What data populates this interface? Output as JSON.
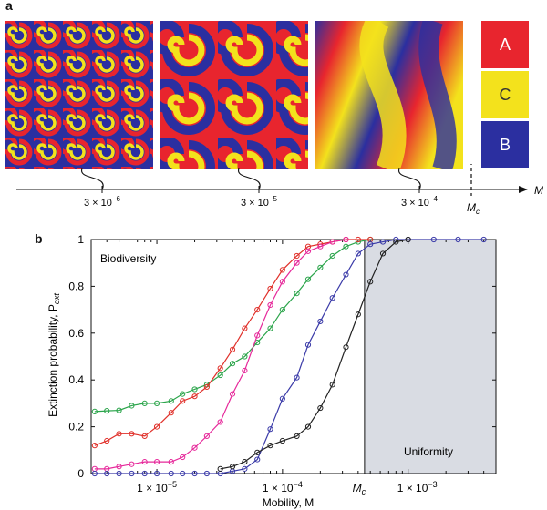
{
  "panel_a": {
    "letter": "a",
    "axis_label": "M",
    "critical_label": "M",
    "critical_sub": "c",
    "ticks": [
      {
        "base": "3 × 10",
        "exp": "−6"
      },
      {
        "base": "3 × 10",
        "exp": "−5"
      },
      {
        "base": "3 × 10",
        "exp": "−4"
      }
    ],
    "legend": [
      {
        "label": "A",
        "color": "#e8252e"
      },
      {
        "label": "C",
        "color": "#f3e21c"
      },
      {
        "label": "B",
        "color": "#2b2fa0"
      }
    ]
  },
  "panel_b": {
    "letter": "b",
    "region_left": "Biodiversity",
    "region_right": "Uniformity"
  },
  "chart_data": {
    "type": "line",
    "xscale": "log",
    "xlabel": "Mobility, M",
    "ylabel": "Extinction probability, P",
    "ylabel_sub": "ext",
    "xlim": [
      3e-06,
      0.005
    ],
    "ylim": [
      0,
      1
    ],
    "yticks": [
      "0",
      "0.2",
      "0.4",
      "0.6",
      "0.8",
      "1"
    ],
    "xticks": [
      {
        "base": "1 × 10",
        "exp": "−5"
      },
      {
        "base": "1 × 10",
        "exp": "−4"
      },
      {
        "base": "1 × 10",
        "exp": "−3"
      }
    ],
    "critical_tick": {
      "label": "M",
      "sub": "c",
      "value": 0.00045
    },
    "shaded_from": 0.00045,
    "series": [
      {
        "color": "#2aa44a",
        "x": [
          3.2e-06,
          4e-06,
          5e-06,
          6.3e-06,
          8e-06,
          1e-05,
          1.3e-05,
          1.6e-05,
          2e-05,
          2.5e-05,
          3.2e-05,
          4e-05,
          5e-05,
          6.3e-05,
          8e-05,
          0.0001,
          0.00013,
          0.00016,
          0.0002,
          0.00025,
          0.00032,
          0.0004,
          0.0005
        ],
        "y": [
          0.265,
          0.268,
          0.27,
          0.29,
          0.3,
          0.3,
          0.31,
          0.34,
          0.36,
          0.38,
          0.42,
          0.47,
          0.5,
          0.56,
          0.62,
          0.7,
          0.77,
          0.83,
          0.88,
          0.93,
          0.97,
          0.99,
          1.0
        ]
      },
      {
        "color": "#e0302a",
        "x": [
          3.2e-06,
          4e-06,
          5e-06,
          6.3e-06,
          8e-06,
          1e-05,
          1.3e-05,
          1.6e-05,
          2e-05,
          2.5e-05,
          3.2e-05,
          4e-05,
          5e-05,
          6.3e-05,
          8e-05,
          0.0001,
          0.00013,
          0.00016,
          0.0002,
          0.00025,
          0.00032,
          0.0004,
          0.0005
        ],
        "y": [
          0.12,
          0.14,
          0.17,
          0.17,
          0.16,
          0.2,
          0.26,
          0.31,
          0.33,
          0.37,
          0.45,
          0.53,
          0.62,
          0.7,
          0.79,
          0.87,
          0.93,
          0.97,
          0.98,
          0.99,
          1.0,
          1.0,
          1.0
        ]
      },
      {
        "color": "#e6289a",
        "x": [
          3.2e-06,
          4e-06,
          5e-06,
          6.3e-06,
          8e-06,
          1e-05,
          1.3e-05,
          1.6e-05,
          2e-05,
          2.5e-05,
          3.2e-05,
          4e-05,
          5e-05,
          6.3e-05,
          8e-05,
          0.0001,
          0.00013,
          0.00016,
          0.0002,
          0.00025,
          0.00032
        ],
        "y": [
          0.02,
          0.02,
          0.03,
          0.04,
          0.05,
          0.05,
          0.05,
          0.07,
          0.11,
          0.16,
          0.22,
          0.34,
          0.44,
          0.59,
          0.72,
          0.82,
          0.9,
          0.95,
          0.97,
          0.99,
          1.0
        ]
      },
      {
        "color": "#3a3aa8",
        "x": [
          3.2e-06,
          4e-06,
          5e-06,
          6.3e-06,
          8e-06,
          1e-05,
          1.3e-05,
          1.6e-05,
          2e-05,
          2.5e-05,
          3.2e-05,
          4e-05,
          5e-05,
          6.3e-05,
          8e-05,
          0.0001,
          0.00013,
          0.00016,
          0.0002,
          0.00025,
          0.00032,
          0.0004,
          0.0005,
          0.00063,
          0.0008,
          0.001,
          0.0016,
          0.0025,
          0.004
        ],
        "y": [
          0,
          0,
          0,
          0,
          0,
          0,
          0,
          0,
          0,
          0,
          0,
          0.01,
          0.02,
          0.06,
          0.19,
          0.32,
          0.41,
          0.55,
          0.65,
          0.75,
          0.85,
          0.94,
          0.98,
          0.99,
          1.0,
          1.0,
          1.0,
          1.0,
          1.0
        ]
      },
      {
        "color": "#222222",
        "x": [
          3.2e-05,
          4e-05,
          5e-05,
          6.3e-05,
          8e-05,
          0.0001,
          0.00013,
          0.00016,
          0.0002,
          0.00025,
          0.00032,
          0.0004,
          0.0005,
          0.00063,
          0.0008,
          0.001
        ],
        "y": [
          0.02,
          0.03,
          0.05,
          0.09,
          0.12,
          0.14,
          0.16,
          0.2,
          0.28,
          0.38,
          0.54,
          0.68,
          0.82,
          0.94,
          0.99,
          1.0
        ]
      }
    ]
  }
}
